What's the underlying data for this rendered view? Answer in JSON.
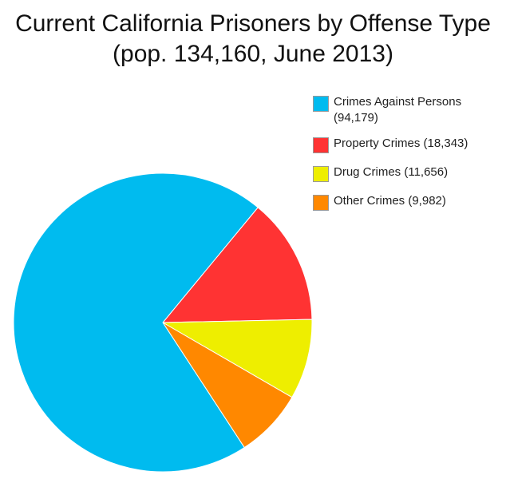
{
  "chart_data": {
    "type": "pie",
    "title": "Current California Prisoners by Offense Type",
    "subtitle": "(pop. 134,160, June 2013)",
    "legend_position": "top-right",
    "series": [
      {
        "name": "",
        "slices": [
          {
            "label": "Crimes Against Persons (94,179)",
            "value": 94179,
            "color": "#00bbef"
          },
          {
            "label": "Property Crimes (18,343)",
            "value": 18343,
            "color": "#ff3333"
          },
          {
            "label": "Drug Crimes (11,656)",
            "value": 11656,
            "color": "#eeee00"
          },
          {
            "label": "Other Crimes (9,982)",
            "value": 9982,
            "color": "#ff8800"
          }
        ]
      }
    ]
  }
}
